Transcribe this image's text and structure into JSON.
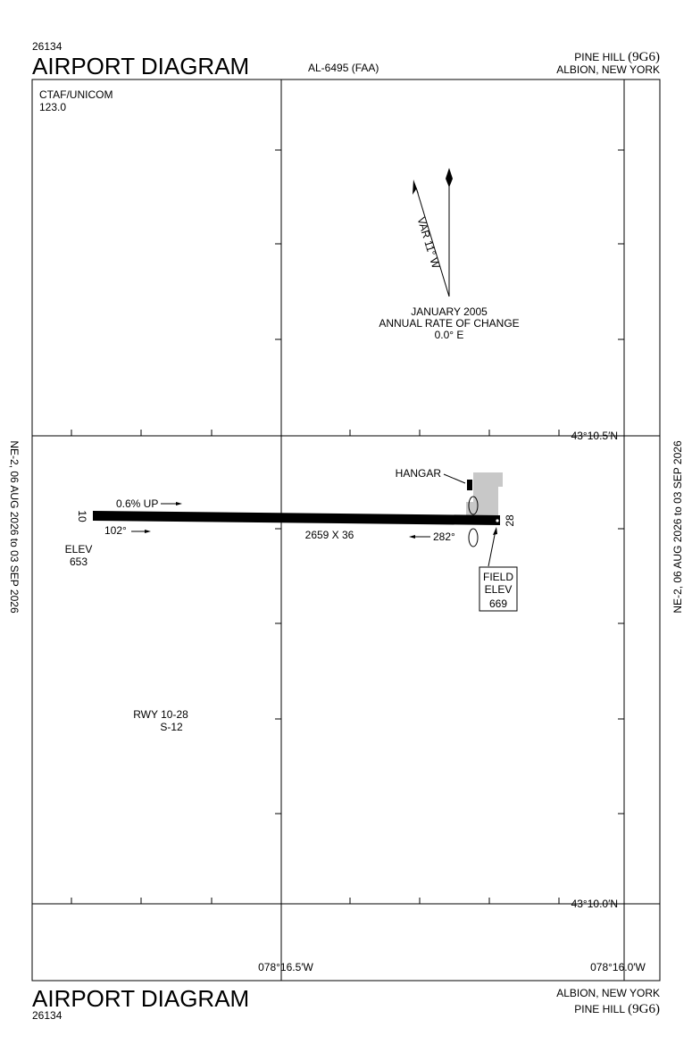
{
  "header": {
    "chart_number": "26134",
    "title": "AIRPORT DIAGRAM",
    "procedure_id": "AL-6495 (FAA)",
    "airport_name": "PINE HILL",
    "airport_id": "(9G6)",
    "location": "ALBION, NEW YORK"
  },
  "frequencies": {
    "label": "CTAF/UNICOM",
    "value": "123.0"
  },
  "magnetic_variation": {
    "label": "VAR 11° W",
    "epoch": "JANUARY 2005",
    "rate_label": "ANNUAL RATE OF CHANGE",
    "rate": "0.0° E"
  },
  "coordinates": {
    "lat_top": "43°10.5′N",
    "lat_bottom": "43°10.0′N",
    "lon_left": "078°16.5′W",
    "lon_right": "078°16.0′W"
  },
  "effective_dates": {
    "left": "NE-2,  06 AUG 2026  to  03 SEP 2026",
    "right": "NE-2,  06 AUG 2026  to  03 SEP 2026"
  },
  "runway": {
    "gradient": "0.6% UP",
    "end_west": "10",
    "heading_west": "102°",
    "elev_label": "ELEV",
    "elev_west": "653",
    "dimensions": "2659 X 36",
    "heading_east": "282°",
    "end_east": "28"
  },
  "hangar": "HANGAR",
  "field_elevation": {
    "label_1": "FIELD",
    "label_2": "ELEV",
    "value": "669"
  },
  "runway_info": {
    "designation": "RWY 10-28",
    "surface": "S-12"
  },
  "footer": {
    "title": "AIRPORT DIAGRAM",
    "chart_number": "26134",
    "location": "ALBION, NEW YORK",
    "airport_name": "PINE HILL",
    "airport_id": "(9G6)"
  }
}
